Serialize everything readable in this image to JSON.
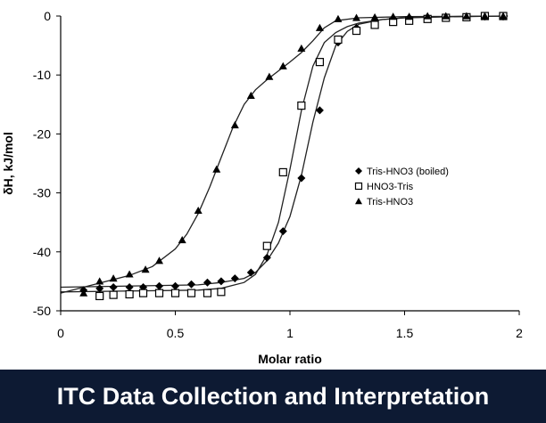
{
  "banner": {
    "title": "ITC Data Collection and Interpretation",
    "background": "#0d1a33",
    "text_color": "#ffffff"
  },
  "chart_data": {
    "type": "scatter",
    "title": "",
    "xlabel": "Molar ratio",
    "ylabel": "δH, kJ/mol",
    "xlim": [
      0,
      2
    ],
    "ylim": [
      -50,
      0
    ],
    "xticks": [
      0,
      0.5,
      1,
      1.5,
      2
    ],
    "xtick_labels": [
      "0",
      "0.5",
      "1",
      "1.5",
      "2"
    ],
    "yticks": [
      0,
      -10,
      -20,
      -30,
      -40,
      -50
    ],
    "ytick_labels": [
      "0",
      "-10",
      "-20",
      "-30",
      "-40",
      "-50"
    ],
    "grid": false,
    "legend_position": "center-right",
    "series": [
      {
        "name": "Tris-HNO3 (boiled)",
        "marker": "diamond-filled",
        "x": [
          0.1,
          0.17,
          0.23,
          0.3,
          0.36,
          0.43,
          0.5,
          0.57,
          0.64,
          0.7,
          0.76,
          0.83,
          0.9,
          0.97,
          1.05,
          1.13,
          1.21,
          1.29,
          1.37,
          1.45,
          1.52,
          1.6,
          1.68,
          1.77,
          1.85,
          1.93
        ],
        "y": [
          -46.5,
          -46.2,
          -46.0,
          -46.0,
          -46.0,
          -45.8,
          -45.8,
          -45.5,
          -45.2,
          -45.0,
          -44.5,
          -43.5,
          -41.0,
          -36.5,
          -27.5,
          -16.0,
          -4.5,
          -2.0,
          -1.0,
          -0.5,
          -0.3,
          -0.2,
          -0.2,
          -0.1,
          -0.1,
          -0.1
        ]
      },
      {
        "name": "HNO3-Tris",
        "marker": "square-open",
        "x": [
          0.17,
          0.23,
          0.3,
          0.36,
          0.43,
          0.5,
          0.57,
          0.64,
          0.7,
          0.9,
          0.97,
          1.05,
          1.13,
          1.21,
          1.29,
          1.37,
          1.45,
          1.52,
          1.6,
          1.68,
          1.77,
          1.85,
          1.93
        ],
        "y": [
          -47.5,
          -47.3,
          -47.2,
          -47.0,
          -47.0,
          -47.0,
          -47.0,
          -47.0,
          -46.8,
          -39.0,
          -26.5,
          -15.2,
          -7.8,
          -4.0,
          -2.5,
          -1.5,
          -1.0,
          -0.8,
          -0.5,
          -0.3,
          -0.2,
          0.0,
          0.0
        ]
      },
      {
        "name": "Tris-HNO3",
        "marker": "triangle-filled",
        "x": [
          0.1,
          0.17,
          0.23,
          0.3,
          0.37,
          0.43,
          0.53,
          0.6,
          0.68,
          0.76,
          0.83,
          0.91,
          0.97,
          1.05,
          1.13,
          1.21,
          1.29,
          1.37,
          1.45,
          1.52,
          1.6,
          1.68,
          1.77,
          1.85,
          1.93
        ],
        "y": [
          -47.0,
          -45.0,
          -44.5,
          -43.8,
          -43.0,
          -41.5,
          -38.0,
          -33.0,
          -26.0,
          -18.5,
          -13.5,
          -10.3,
          -8.5,
          -5.5,
          -2.0,
          -0.5,
          -0.3,
          -0.2,
          -0.1,
          -0.1,
          0.0,
          0.0,
          0.0,
          0.0,
          0.0
        ]
      }
    ],
    "fits": [
      {
        "x": [
          0.0,
          0.6,
          0.7,
          0.8,
          0.85,
          0.9,
          0.95,
          1.0,
          1.05,
          1.1,
          1.15,
          1.2,
          1.25,
          1.3,
          1.4,
          1.5,
          1.7,
          1.95
        ],
        "y": [
          -46.0,
          -45.6,
          -45.2,
          -44.5,
          -43.5,
          -41.5,
          -38.5,
          -34.0,
          -27.0,
          -18.0,
          -10.5,
          -5.0,
          -2.6,
          -1.4,
          -0.6,
          -0.3,
          -0.1,
          0.0
        ]
      },
      {
        "x": [
          0.0,
          0.6,
          0.7,
          0.8,
          0.85,
          0.9,
          0.95,
          1.0,
          1.05,
          1.1,
          1.15,
          1.2,
          1.25,
          1.3,
          1.4,
          1.5,
          1.7,
          1.95
        ],
        "y": [
          -46.8,
          -46.5,
          -46.2,
          -45.2,
          -43.8,
          -40.5,
          -35.0,
          -26.0,
          -16.0,
          -8.5,
          -4.5,
          -2.8,
          -1.8,
          -1.2,
          -0.6,
          -0.3,
          -0.1,
          0.0
        ]
      },
      {
        "x": [
          0.0,
          0.1,
          0.2,
          0.3,
          0.4,
          0.5,
          0.55,
          0.6,
          0.65,
          0.7,
          0.75,
          0.8,
          0.85,
          0.9,
          0.95,
          1.0,
          1.05,
          1.1,
          1.15,
          1.2,
          1.3,
          1.5,
          1.95
        ],
        "y": [
          -47.0,
          -46.0,
          -45.0,
          -44.0,
          -42.5,
          -39.5,
          -37.0,
          -33.5,
          -29.0,
          -24.0,
          -19.0,
          -15.0,
          -12.5,
          -10.8,
          -9.3,
          -7.8,
          -6.2,
          -4.2,
          -2.0,
          -0.8,
          -0.3,
          -0.1,
          0.0
        ]
      }
    ]
  }
}
